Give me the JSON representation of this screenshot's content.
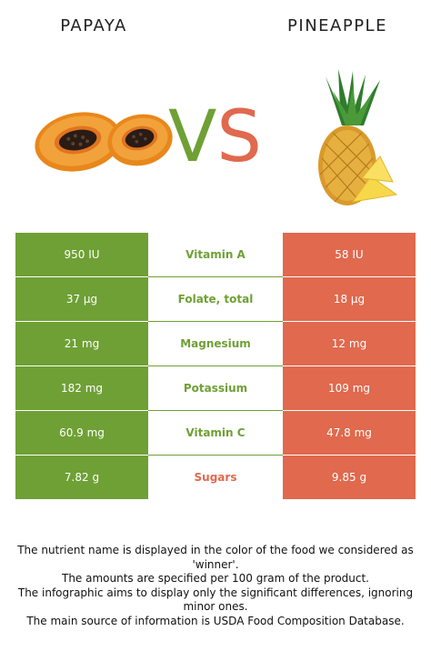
{
  "left_food": {
    "name": "PAPAYA",
    "color": "#6fa035"
  },
  "right_food": {
    "name": "PINEAPPLE",
    "color": "#e0694e"
  },
  "vs": {
    "v": "V",
    "s": "S"
  },
  "rows": [
    {
      "left": "950 IU",
      "nutrient": "Vitamin A",
      "right": "58 IU",
      "winner": "left"
    },
    {
      "left": "37 µg",
      "nutrient": "Folate, total",
      "right": "18 µg",
      "winner": "left"
    },
    {
      "left": "21 mg",
      "nutrient": "Magnesium",
      "right": "12 mg",
      "winner": "left"
    },
    {
      "left": "182 mg",
      "nutrient": "Potassium",
      "right": "109 mg",
      "winner": "left"
    },
    {
      "left": "60.9 mg",
      "nutrient": "Vitamin C",
      "right": "47.8 mg",
      "winner": "left"
    },
    {
      "left": "7.82 g",
      "nutrient": "Sugars",
      "right": "9.85 g",
      "winner": "right"
    }
  ],
  "footer": {
    "line1": "The nutrient name is displayed in the color of the food we considered as 'winner'.",
    "line2": "The amounts are specified per 100 gram of the product.",
    "line3": "The infographic aims to display only the significant differences, ignoring minor ones.",
    "line4": "The main source of information is USDA Food Composition Database."
  }
}
